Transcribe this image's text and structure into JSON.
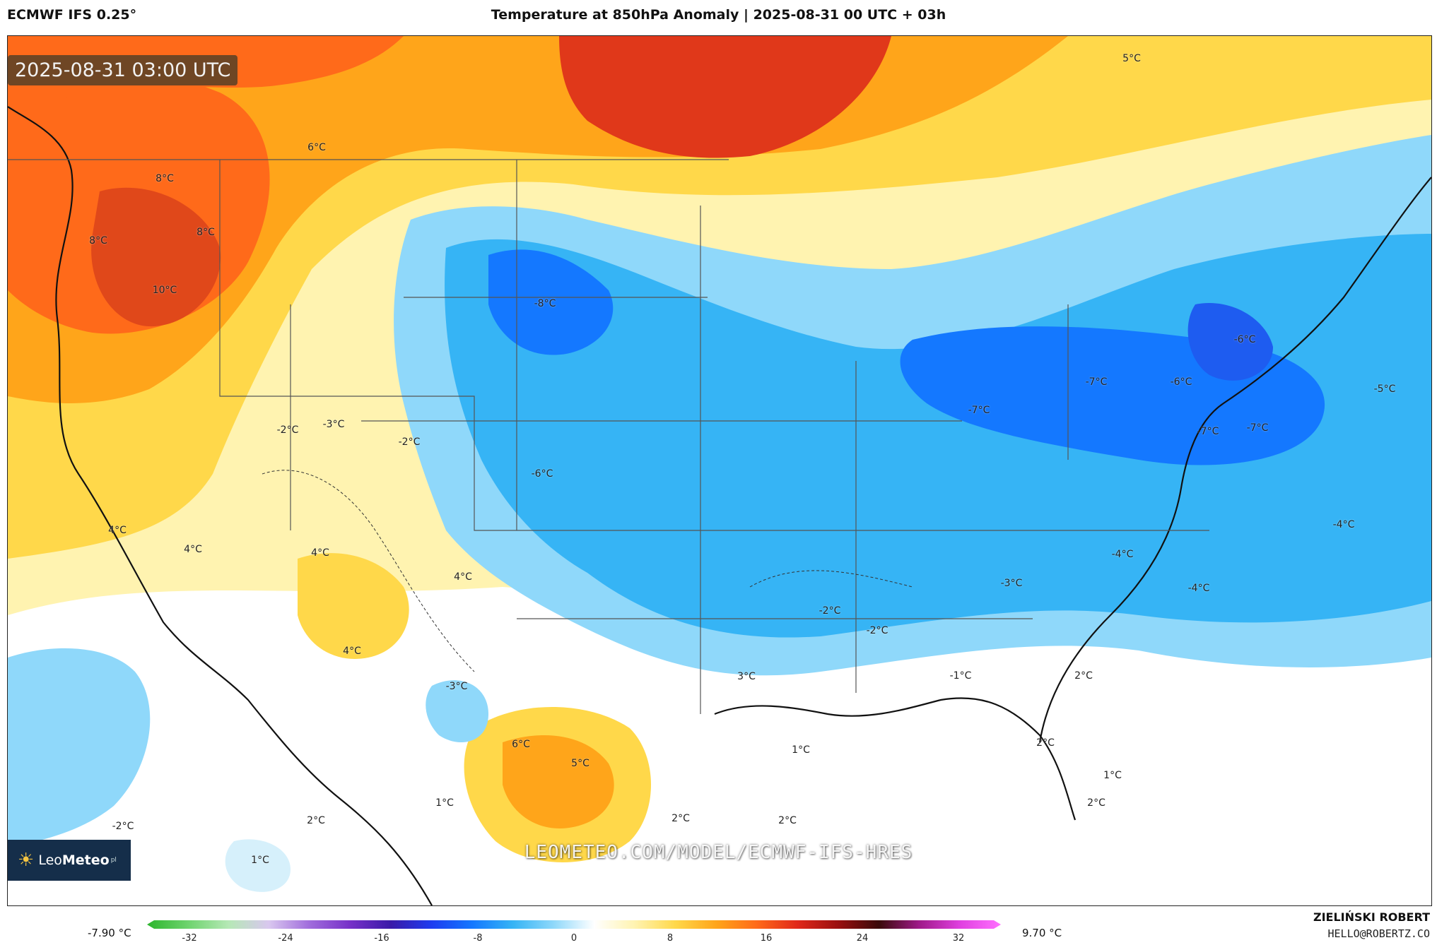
{
  "header": {
    "model_label": "ECMWF IFS 0.25°",
    "title": "Temperature at 850hPa Anomaly | 2025-08-31 00 UTC + 03h"
  },
  "map": {
    "timestamp": "2025-08-31 03:00 UTC",
    "watermark": "LEOMETEO.COM/MODEL/ECMWF-IFS-HRES",
    "logo": {
      "brand_light": "Leo",
      "brand_bold": "Meteo",
      "suffix": "pl"
    },
    "isotherm_labels": [
      "6°C",
      "8°C",
      "8°C",
      "8°C",
      "10°C",
      "5°C",
      "-8°C",
      "-2°C",
      "-3°C",
      "-2°C",
      "-6°C",
      "-7°C",
      "-7°C",
      "-6°C",
      "-6°C",
      "-7°C",
      "-7°C",
      "-5°C",
      "4°C",
      "4°C",
      "4°C",
      "4°C",
      "4°C",
      "-4°C",
      "-4°C",
      "-3°C",
      "-4°C",
      "-2°C",
      "-2°C",
      "3°C",
      "-3°C",
      "-1°C",
      "2°C",
      "6°C",
      "5°C",
      "1°C",
      "2°C",
      "1°C",
      "1°C",
      "2°C",
      "2°C",
      "2°C",
      "2°C",
      "-2°C",
      "1°C"
    ]
  },
  "legend": {
    "min_label": "-7.90 °C",
    "max_label": "9.70 °C",
    "ticks": [
      "-32",
      "-24",
      "-16",
      "-8",
      "0",
      "8",
      "16",
      "24",
      "32"
    ],
    "colors": [
      "#2db52d",
      "#6dd36d",
      "#b5e8b5",
      "#d9c7ef",
      "#a06cdc",
      "#7630c8",
      "#3a1aa8",
      "#1e3cf0",
      "#1478ff",
      "#36b4f5",
      "#8fd8fa",
      "#ffffff",
      "#fff3b0",
      "#ffd84a",
      "#ffa51a",
      "#ff6a1a",
      "#e0281a",
      "#9a0f0f",
      "#3a0a0a",
      "#a01a8a",
      "#e040e0",
      "#ff70ff"
    ]
  },
  "credits": {
    "author": "ZIELIŃSKI ROBERT",
    "email": "HELLO@ROBERTZ.CO"
  }
}
